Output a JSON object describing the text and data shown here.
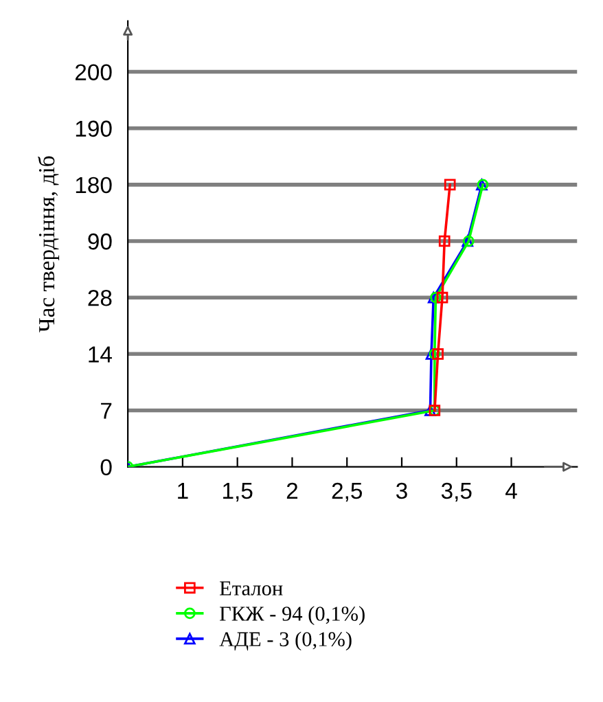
{
  "chart_data": {
    "type": "line",
    "orientation": "horizontal",
    "ylabel": "Час твердіння, діб",
    "categories": [
      "200",
      "190",
      "180",
      "90",
      "28",
      "14",
      "7",
      "0"
    ],
    "series": [
      {
        "name": "Еталон",
        "color": "#ff0000",
        "marker": "square",
        "values": [
          null,
          null,
          3.44,
          3.39,
          3.37,
          3.33,
          3.3,
          null
        ]
      },
      {
        "name": "ГКЖ - 94 (0,1%)",
        "color": "#00ff00",
        "marker": "circle",
        "values": [
          null,
          null,
          3.74,
          3.61,
          3.31,
          3.3,
          3.3,
          0.5
        ]
      },
      {
        "name": "АДЕ - 3 (0,1%)",
        "color": "#0000ff",
        "marker": "triangle",
        "values": [
          null,
          null,
          3.73,
          3.6,
          3.29,
          3.27,
          3.26,
          0.5
        ]
      }
    ],
    "xlim": [
      0.5,
      4.6
    ],
    "xticks": [
      1,
      {
        "value": 1.5,
        "label": "1,5"
      },
      2,
      {
        "value": 2.5,
        "label": "2,5"
      },
      3,
      {
        "value": 3.5,
        "label": "3,5"
      },
      4
    ],
    "grid": "y",
    "legend": "bottom",
    "line_style": "solid"
  }
}
